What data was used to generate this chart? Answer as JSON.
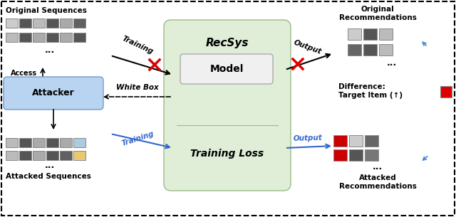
{
  "fig_width": 6.4,
  "fig_height": 3.05,
  "dpi": 100,
  "bg_color": "#ffffff",
  "seq_colors_orig1": [
    "#cccccc",
    "#555555",
    "#bbbbbb",
    "#555555",
    "#aaaaaa",
    "#606060"
  ],
  "seq_colors_orig2": [
    "#bbbbbb",
    "#555555",
    "#aaaaaa",
    "#555555",
    "#aaaaaa",
    "#555555"
  ],
  "seq_colors_atk1": [
    "#bbbbbb",
    "#555555",
    "#aaaaaa",
    "#555555",
    "#aaaaaa",
    "#aaccdd"
  ],
  "seq_colors_atk2": [
    "#bbbbbb",
    "#555555",
    "#aaaaaa",
    "#555555",
    "#606060",
    "#e8c870"
  ],
  "rec_orig_row1": [
    "#cccccc",
    "#555555",
    "#bbbbbb"
  ],
  "rec_orig_row2": [
    "#666666",
    "#555555",
    "#bbbbbb"
  ],
  "rec_atk_row1": [
    "#cc0000",
    "#cccccc",
    "#666666"
  ],
  "rec_atk_row2": [
    "#cc0000",
    "#555555",
    "#777777"
  ],
  "attacker_box_color": "#b8d4f0",
  "attacker_edge_color": "#7799cc",
  "recsys_box_color": "#e0eed8",
  "recsys_edge_color": "#99bb88",
  "model_box_color": "#f0f0f0",
  "model_edge_color": "#aaaaaa",
  "label_orig_seq": "Original Sequences",
  "label_attacked_seq": "Attacked Sequences",
  "label_orig_rec": "Original\nRecommendations",
  "label_attacked_rec": "Attacked\nRecommendations",
  "label_attacker": "Attacker",
  "label_access": "Access",
  "label_whitebox": "White Box",
  "label_recsys": "RecSys",
  "label_model": "Model",
  "label_training_loss": "Training Loss",
  "label_training": "Training",
  "label_output": "Output",
  "label_diff": "Difference:\nTarget Item (↑)",
  "label_dots": "...",
  "black": "#000000",
  "blue": "#3366cc",
  "red": "#dd0000",
  "dash_blue": "#4488cc"
}
